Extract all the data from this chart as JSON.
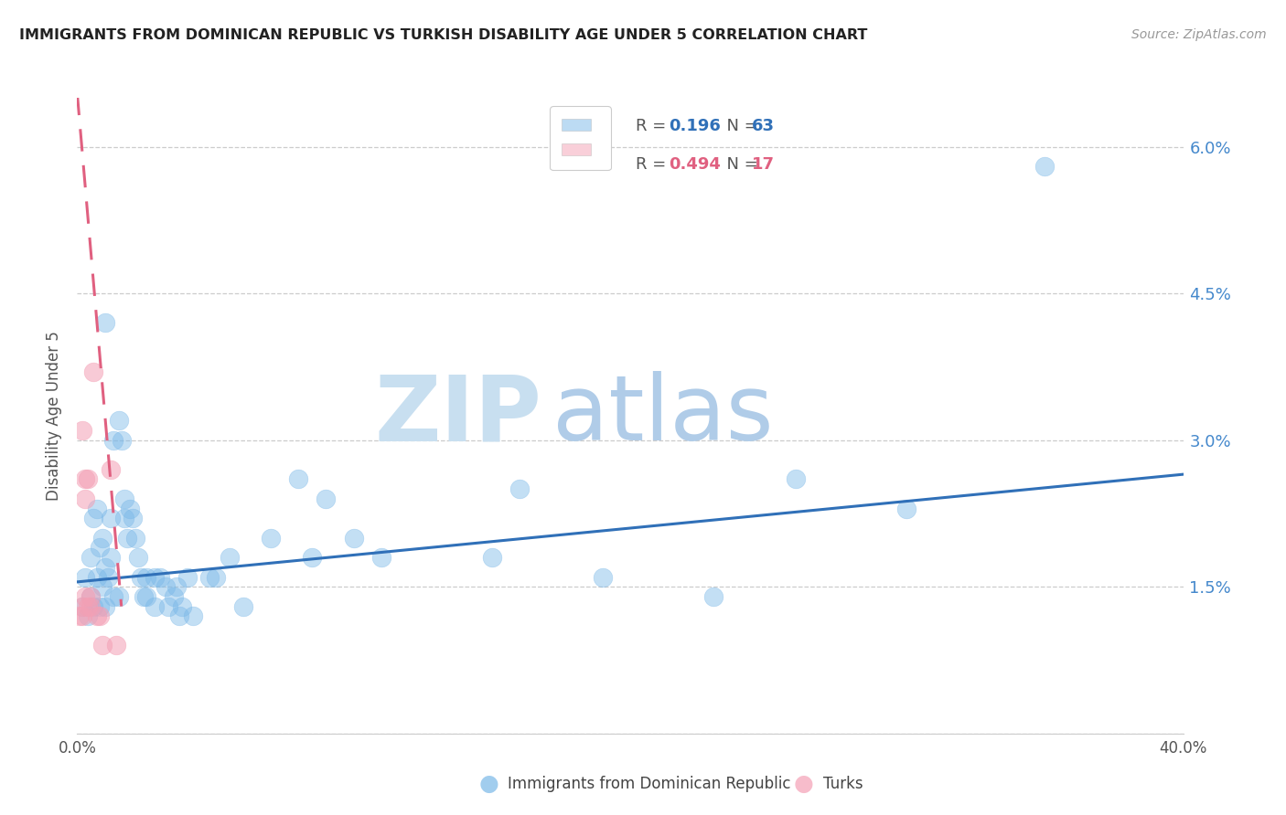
{
  "title": "IMMIGRANTS FROM DOMINICAN REPUBLIC VS TURKISH DISABILITY AGE UNDER 5 CORRELATION CHART",
  "source": "Source: ZipAtlas.com",
  "ylabel": "Disability Age Under 5",
  "xlim": [
    0.0,
    0.4
  ],
  "ylim": [
    0.0,
    0.065
  ],
  "yticks": [
    0.0,
    0.015,
    0.03,
    0.045,
    0.06
  ],
  "ytick_labels": [
    "",
    "1.5%",
    "3.0%",
    "4.5%",
    "6.0%"
  ],
  "xticks": [
    0.0,
    0.1,
    0.2,
    0.3,
    0.4
  ],
  "xtick_labels": [
    "0.0%",
    "",
    "",
    "",
    "40.0%"
  ],
  "blue_R": 0.196,
  "blue_N": 63,
  "pink_R": 0.494,
  "pink_N": 17,
  "blue_color": "#7ab8e8",
  "pink_color": "#f4a0b5",
  "blue_line_color": "#3070b8",
  "pink_line_color": "#e06080",
  "legend_label_blue": "Immigrants from Dominican Republic",
  "legend_label_pink": "Turks",
  "watermark_zip": "ZIP",
  "watermark_atlas": "atlas",
  "blue_points": [
    [
      0.002,
      0.013
    ],
    [
      0.003,
      0.016
    ],
    [
      0.004,
      0.012
    ],
    [
      0.005,
      0.014
    ],
    [
      0.005,
      0.018
    ],
    [
      0.006,
      0.022
    ],
    [
      0.006,
      0.013
    ],
    [
      0.007,
      0.023
    ],
    [
      0.007,
      0.016
    ],
    [
      0.008,
      0.019
    ],
    [
      0.008,
      0.013
    ],
    [
      0.009,
      0.02
    ],
    [
      0.009,
      0.015
    ],
    [
      0.01,
      0.042
    ],
    [
      0.01,
      0.017
    ],
    [
      0.01,
      0.013
    ],
    [
      0.011,
      0.016
    ],
    [
      0.012,
      0.022
    ],
    [
      0.012,
      0.018
    ],
    [
      0.013,
      0.03
    ],
    [
      0.013,
      0.014
    ],
    [
      0.015,
      0.014
    ],
    [
      0.015,
      0.032
    ],
    [
      0.016,
      0.03
    ],
    [
      0.017,
      0.022
    ],
    [
      0.017,
      0.024
    ],
    [
      0.018,
      0.02
    ],
    [
      0.019,
      0.023
    ],
    [
      0.02,
      0.022
    ],
    [
      0.021,
      0.02
    ],
    [
      0.022,
      0.018
    ],
    [
      0.023,
      0.016
    ],
    [
      0.024,
      0.014
    ],
    [
      0.025,
      0.016
    ],
    [
      0.025,
      0.014
    ],
    [
      0.028,
      0.013
    ],
    [
      0.028,
      0.016
    ],
    [
      0.03,
      0.016
    ],
    [
      0.032,
      0.015
    ],
    [
      0.033,
      0.013
    ],
    [
      0.035,
      0.014
    ],
    [
      0.036,
      0.015
    ],
    [
      0.037,
      0.012
    ],
    [
      0.038,
      0.013
    ],
    [
      0.04,
      0.016
    ],
    [
      0.042,
      0.012
    ],
    [
      0.048,
      0.016
    ],
    [
      0.05,
      0.016
    ],
    [
      0.055,
      0.018
    ],
    [
      0.06,
      0.013
    ],
    [
      0.07,
      0.02
    ],
    [
      0.08,
      0.026
    ],
    [
      0.085,
      0.018
    ],
    [
      0.09,
      0.024
    ],
    [
      0.1,
      0.02
    ],
    [
      0.11,
      0.018
    ],
    [
      0.15,
      0.018
    ],
    [
      0.16,
      0.025
    ],
    [
      0.19,
      0.016
    ],
    [
      0.23,
      0.014
    ],
    [
      0.26,
      0.026
    ],
    [
      0.3,
      0.023
    ],
    [
      0.35,
      0.058
    ]
  ],
  "pink_points": [
    [
      0.001,
      0.012
    ],
    [
      0.002,
      0.012
    ],
    [
      0.002,
      0.013
    ],
    [
      0.002,
      0.031
    ],
    [
      0.003,
      0.026
    ],
    [
      0.003,
      0.024
    ],
    [
      0.003,
      0.014
    ],
    [
      0.004,
      0.026
    ],
    [
      0.004,
      0.013
    ],
    [
      0.005,
      0.013
    ],
    [
      0.005,
      0.014
    ],
    [
      0.006,
      0.037
    ],
    [
      0.007,
      0.012
    ],
    [
      0.008,
      0.012
    ],
    [
      0.009,
      0.009
    ],
    [
      0.012,
      0.027
    ],
    [
      0.014,
      0.009
    ]
  ],
  "blue_line_x": [
    0.0,
    0.4
  ],
  "blue_line_y": [
    0.0155,
    0.0265
  ],
  "pink_line_x": [
    0.0,
    0.016
  ],
  "pink_line_y": [
    0.0655,
    0.013
  ]
}
